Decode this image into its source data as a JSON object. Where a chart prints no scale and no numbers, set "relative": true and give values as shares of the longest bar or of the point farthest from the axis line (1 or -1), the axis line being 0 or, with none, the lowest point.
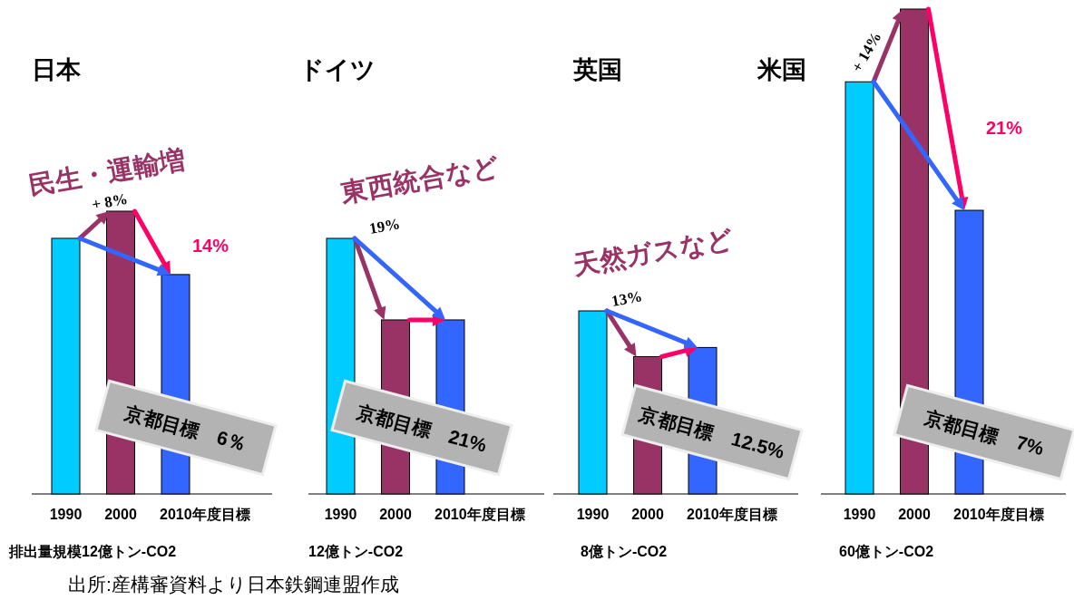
{
  "chart_data": [
    {
      "type": "bar",
      "title": "日本",
      "categories": [
        "1990",
        "2000",
        "2010年度目標"
      ],
      "values": [
        0.904,
        1,
        0.776
      ],
      "colors": [
        "#00ccff",
        "#993366",
        "#3366ff"
      ],
      "relative": true,
      "tick_labels": "x",
      "annotations": [
        "民生・運輸増",
        "+ 8%",
        "14%",
        "京都目標　6％",
        "排出量規模12億トン-CO2",
        "出所:産構審資料より日本鉄鋼連盟作成"
      ]
    },
    {
      "type": "bar",
      "title": "ドイツ",
      "categories": [
        "1990",
        "2000",
        "2010年度目標"
      ],
      "values": [
        1,
        0.681,
        0.681
      ],
      "colors": [
        "#00ccff",
        "#993366",
        "#3366ff"
      ],
      "relative": true,
      "tick_labels": "x",
      "annotations": [
        "東西統合など",
        "19%",
        "京都目標　21%",
        "12億トン-CO2"
      ]
    },
    {
      "type": "bar",
      "title": "英国",
      "categories": [
        "1990",
        "2000",
        "2010年度目標"
      ],
      "values": [
        1,
        0.75,
        0.8
      ],
      "colors": [
        "#00ccff",
        "#993366",
        "#3366ff"
      ],
      "relative": true,
      "tick_labels": "x",
      "annotations": [
        "天然ガスなど",
        "13%",
        "京都目標　12.5%",
        "8億トン-CO2"
      ]
    },
    {
      "type": "bar",
      "title": "米国",
      "categories": [
        "1990",
        "2000",
        "2010年度目標"
      ],
      "values": [
        0.85,
        1,
        0.585
      ],
      "colors": [
        "#00ccff",
        "#993366",
        "#3366ff"
      ],
      "relative": true,
      "tick_labels": "x",
      "annotations": [
        "+ 14%",
        "21%",
        "京都目標　7%",
        "60億トン-CO2"
      ]
    }
  ]
}
